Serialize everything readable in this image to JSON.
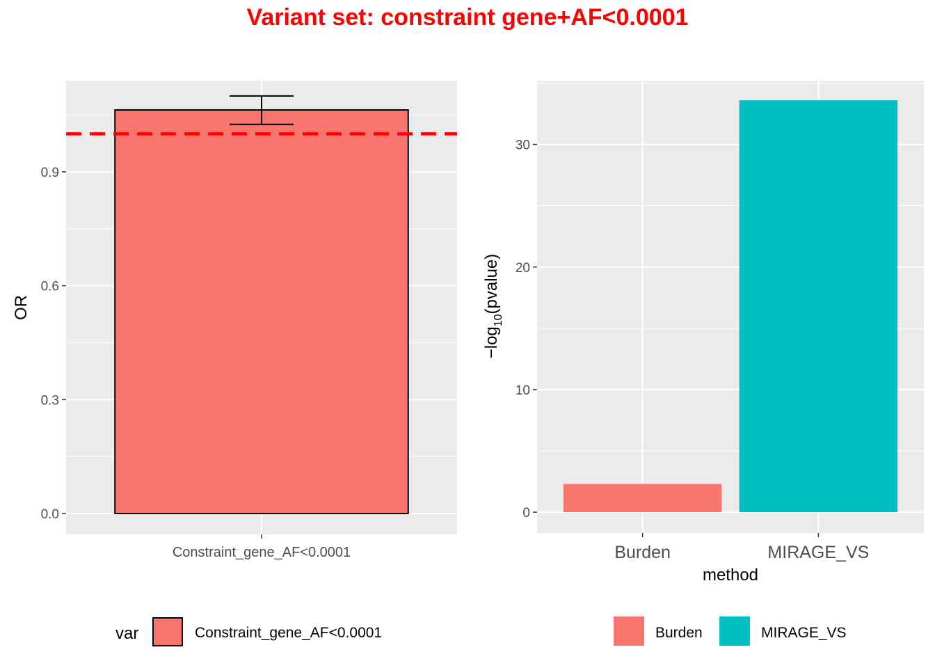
{
  "title": "Variant set: constraint gene+AF<0.0001",
  "title_color": "#ff0000",
  "panel_bg": "#ebebeb",
  "chart_data": [
    {
      "type": "bar",
      "categories": [
        "Constraint_gene_AF<0.0001"
      ],
      "values": [
        1.063
      ],
      "error_bars": [
        {
          "low": 1.025,
          "high": 1.1
        }
      ],
      "reference_line": {
        "y": 1.0,
        "color": "#ff0000",
        "style": "dashed"
      },
      "xlabel": "",
      "ylabel": "OR",
      "ylim": [
        -0.055,
        1.14
      ],
      "yticks": [
        0.0,
        0.3,
        0.6,
        0.9
      ],
      "ytick_labels": [
        "0.0",
        "0.3",
        "0.6",
        "0.9"
      ],
      "fill": "#f8766d",
      "outline": "#000000",
      "grid": true,
      "legend": {
        "title": "var",
        "entries": [
          {
            "label": "Constraint_gene_AF<0.0001",
            "color": "#f8766d"
          }
        ],
        "position": "bottom"
      }
    },
    {
      "type": "bar",
      "categories": [
        "Burden",
        "MIRAGE_VS"
      ],
      "values": [
        2.3,
        33.6
      ],
      "colors": [
        "#f8766d",
        "#00bfc4"
      ],
      "xlabel": "method",
      "ylabel": "-log10(pvalue)",
      "ylabel_parts": {
        "prefix": "−log",
        "subscript": "10",
        "suffix": "(pvalue)"
      },
      "ylim": [
        -1.7,
        35.2
      ],
      "yticks": [
        0,
        10,
        20,
        30
      ],
      "ytick_labels": [
        "0",
        "10",
        "20",
        "30"
      ],
      "grid": true,
      "legend": {
        "title": "",
        "entries": [
          {
            "label": "Burden",
            "color": "#f8766d"
          },
          {
            "label": "MIRAGE_VS",
            "color": "#00bfc4"
          }
        ],
        "position": "bottom"
      }
    }
  ]
}
